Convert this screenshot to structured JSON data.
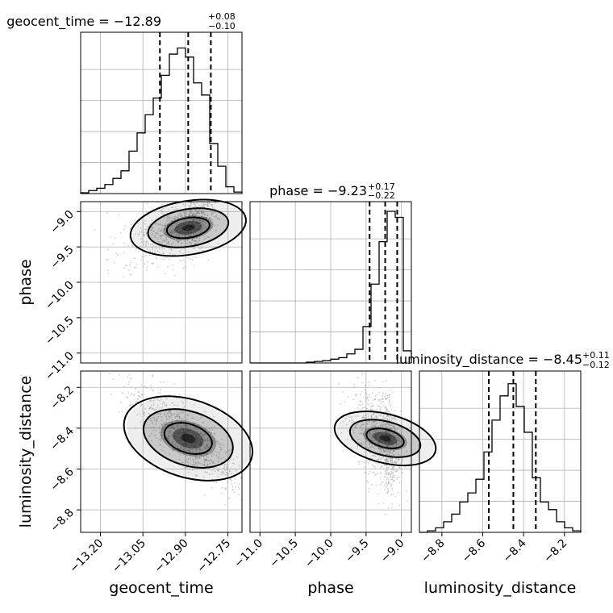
{
  "chart_data": {
    "type": "corner",
    "parameters": [
      "geocent_time",
      "phase",
      "luminosity_distance"
    ],
    "axis_labels": {
      "x": [
        "geocent_time",
        "phase",
        "luminosity_distance"
      ],
      "y": [
        "phase",
        "luminosity_distance"
      ]
    },
    "titles": [
      {
        "param": "geocent_time",
        "text": "geocent_time = −12.89",
        "plus": "+0.08",
        "minus": "−0.10"
      },
      {
        "param": "phase",
        "text": "phase = −9.23",
        "plus": "+0.17",
        "minus": "−0.22"
      },
      {
        "param": "luminosity_distance",
        "text": "luminosity_distance = −8.45",
        "plus": "+0.11",
        "minus": "−0.12"
      }
    ],
    "ranges": {
      "geocent_time": [
        -13.27,
        -12.7
      ],
      "phase": [
        -11.14,
        -8.86
      ],
      "luminosity_distance": [
        -8.91,
        -8.12
      ]
    },
    "ticks": {
      "geocent_time": {
        "values": [
          -13.2,
          -13.05,
          -12.9,
          -12.75
        ],
        "labels": [
          "−13.20",
          "−13.05",
          "−12.90",
          "−12.75"
        ]
      },
      "phase": {
        "values": [
          -11.0,
          -10.5,
          -10.0,
          -9.5,
          -9.0
        ],
        "labels": [
          "−11.0",
          "−10.5",
          "−10.0",
          "−9.5",
          "−9.0"
        ]
      },
      "luminosity_distance": {
        "values": [
          -8.8,
          -8.6,
          -8.4,
          -8.2
        ],
        "labels": [
          "−8.8",
          "−8.6",
          "−8.4",
          "−8.2"
        ]
      },
      "luminosity_distance_y": {
        "values": [
          -8.8,
          -8.6,
          -8.4,
          -8.2
        ],
        "labels": [
          "−8.8",
          "−8.6",
          "−8.4",
          "−8.2"
        ]
      }
    },
    "quantiles": {
      "geocent_time": [
        -12.99,
        -12.89,
        -12.81
      ],
      "phase": [
        -9.45,
        -9.23,
        -9.06
      ],
      "luminosity_distance": [
        -8.57,
        -8.45,
        -8.34
      ]
    },
    "histograms": {
      "geocent_time": [
        0.005,
        0.02,
        0.035,
        0.06,
        0.1,
        0.15,
        0.28,
        0.4,
        0.52,
        0.63,
        0.78,
        0.92,
        0.96,
        0.9,
        0.73,
        0.65,
        0.33,
        0.18,
        0.045,
        0.01
      ],
      "phase": [
        0.0,
        0.0,
        0.0,
        0.0,
        0.0,
        0.0,
        0.0,
        0.005,
        0.01,
        0.015,
        0.025,
        0.035,
        0.06,
        0.09,
        0.24,
        0.52,
        0.8,
        1.0,
        0.96,
        0.08
      ],
      "luminosity_distance": [
        0.0,
        0.01,
        0.03,
        0.07,
        0.12,
        0.2,
        0.26,
        0.35,
        0.53,
        0.74,
        0.9,
        0.98,
        0.83,
        0.66,
        0.36,
        0.2,
        0.15,
        0.07,
        0.03,
        0.01
      ]
    },
    "grid": true,
    "grid_color": "#b0b0b0",
    "contour_color": "#000000",
    "point_color": "#9a9a9a"
  }
}
